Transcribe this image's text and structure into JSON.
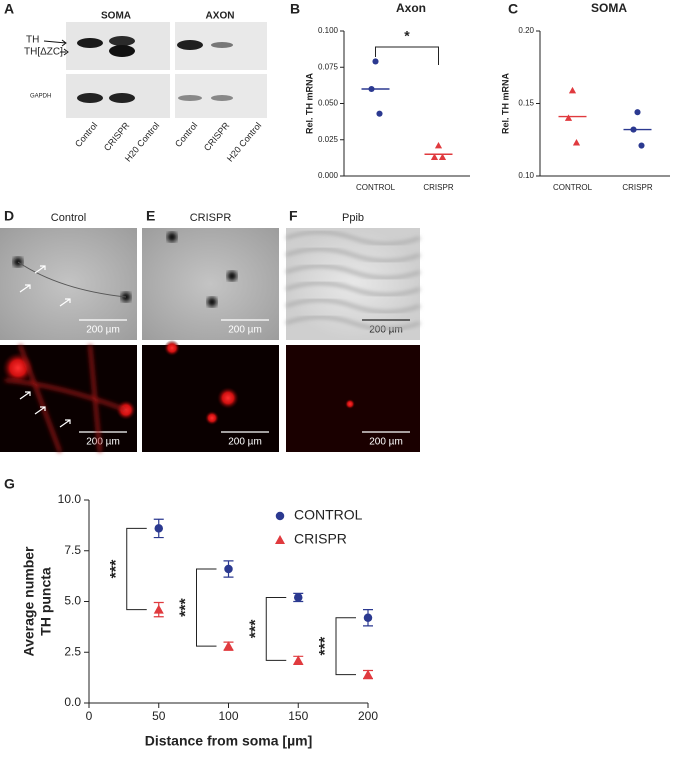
{
  "panel_labels": [
    "A",
    "B",
    "C",
    "D",
    "E",
    "F",
    "G"
  ],
  "blot": {
    "groups": [
      "SOMA",
      "AXON"
    ],
    "bands": [
      "TH",
      "TH[ΔZC]"
    ],
    "loading": "GAPDH",
    "lanes": [
      "Control",
      "CRISPR",
      "H20 Control"
    ]
  },
  "micrographs": {
    "titles": [
      "Control",
      "CRISPR",
      "Ppib"
    ],
    "scale_bar": "200 µm"
  },
  "chart_data": [
    {
      "type": "strip",
      "title": "Axon",
      "y_label": "Rel. TH mRNA",
      "categories": [
        "CONTROL",
        "CRISPR"
      ],
      "values": [
        [
          0.079,
          0.06,
          0.043
        ],
        [
          0.021,
          0.013,
          0.013
        ]
      ],
      "means": [
        0.06,
        0.015
      ],
      "colors": [
        "#2b3990",
        "#e03a3e"
      ],
      "markers": [
        "circle",
        "triangle"
      ],
      "ylim": [
        0,
        0.1
      ],
      "yticks": [
        {
          "value": 0,
          "label": "0.000"
        },
        {
          "value": 0.025,
          "label": "0.025"
        },
        {
          "value": 0.05,
          "label": "0.050"
        },
        {
          "value": 0.075,
          "label": "0.075"
        },
        {
          "value": 0.1,
          "label": "0.100"
        }
      ],
      "significance": "*"
    },
    {
      "type": "strip",
      "title": "SOMA",
      "y_label": "Rel. TH mRNA",
      "categories": [
        "CONTROL",
        "CRISPR"
      ],
      "values": [
        [
          0.159,
          0.14,
          0.123
        ],
        [
          0.144,
          0.132,
          0.121
        ]
      ],
      "means": [
        0.141,
        0.132
      ],
      "colors": [
        "#e03a3e",
        "#2b3990"
      ],
      "markers": [
        "triangle",
        "circle"
      ],
      "ylim": [
        0.1,
        0.2
      ],
      "yticks": [
        {
          "value": 0.1,
          "label": "0.10"
        },
        {
          "value": 0.15,
          "label": "0.15"
        },
        {
          "value": 0.2,
          "label": "0.20"
        }
      ]
    },
    {
      "type": "errorbar",
      "x_label": "Distance from soma [µm]",
      "y_label": [
        "Average number",
        "TH puncta"
      ],
      "x": [
        50,
        100,
        150,
        200
      ],
      "series": [
        {
          "name": "CONTROL",
          "color": "#2b3990",
          "marker": "circle",
          "values": [
            8.6,
            6.6,
            5.2,
            4.2
          ],
          "errors": [
            0.45,
            0.4,
            0.2,
            0.4
          ]
        },
        {
          "name": "CRISPR",
          "color": "#e03a3e",
          "marker": "triangle",
          "values": [
            4.6,
            2.8,
            2.1,
            1.4
          ],
          "errors": [
            0.35,
            0.2,
            0.2,
            0.2
          ]
        }
      ],
      "xlim": [
        0,
        200
      ],
      "xticks": [
        0,
        50,
        100,
        150,
        200
      ],
      "ylim": [
        0,
        10
      ],
      "yticks": [
        {
          "value": 0,
          "label": "0.0"
        },
        {
          "value": 2.5,
          "label": "2.5"
        },
        {
          "value": 5,
          "label": "5.0"
        },
        {
          "value": 7.5,
          "label": "7.5"
        },
        {
          "value": 10,
          "label": "10.0"
        }
      ],
      "significance": [
        "***",
        "***",
        "***",
        "***"
      ]
    }
  ]
}
